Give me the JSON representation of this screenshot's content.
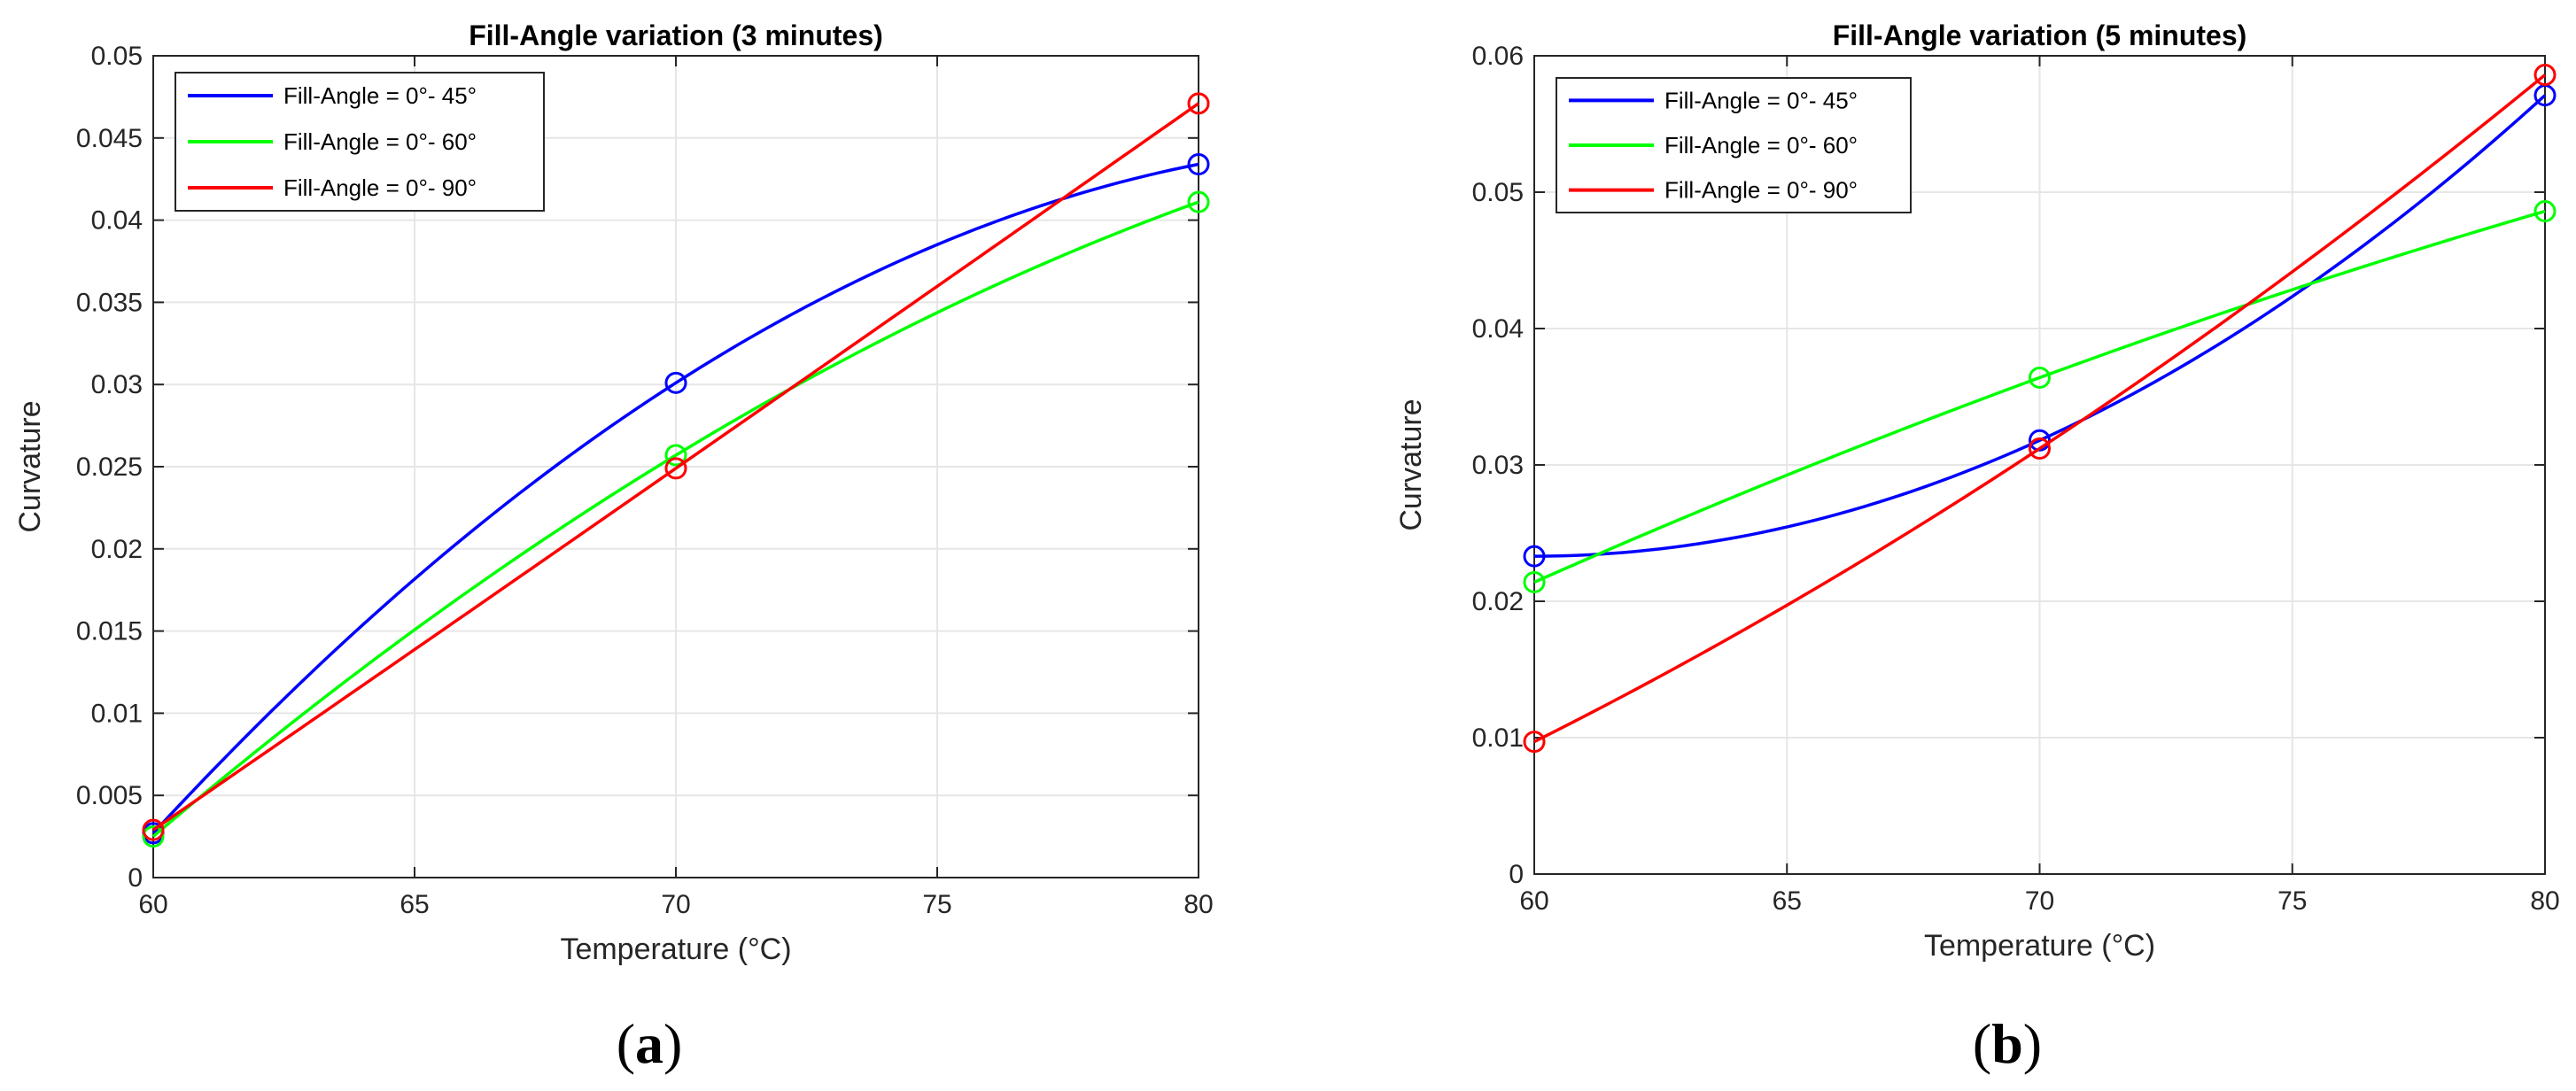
{
  "chart_data": [
    {
      "type": "line",
      "title": "Fill-Angle variation (3 minutes)",
      "xlabel": "Temperature (°C)",
      "ylabel": "Curvature",
      "xlim": [
        60,
        80
      ],
      "ylim": [
        0,
        0.05
      ],
      "x_ticks": [
        60,
        65,
        70,
        75,
        80
      ],
      "y_ticks": [
        0,
        0.005,
        0.01,
        0.015,
        0.02,
        0.025,
        0.03,
        0.035,
        0.04,
        0.045,
        0.05
      ],
      "x_tick_labels": [
        "60",
        "65",
        "70",
        "75",
        "80"
      ],
      "y_tick_labels": [
        "0",
        "0.005",
        "0.01",
        "0.015",
        "0.02",
        "0.025",
        "0.03",
        "0.035",
        "0.04",
        "0.045",
        "0.05"
      ],
      "grid": true,
      "legend_position": "top-left",
      "panel_label": {
        "open": "(",
        "letter": "a",
        "close": ")"
      },
      "series": [
        {
          "name": "Fill-Angle = 0°- 45°",
          "color": "#0000ff",
          "x": [
            60,
            70,
            80
          ],
          "y": [
            0.0027,
            0.0301,
            0.0434
          ]
        },
        {
          "name": "Fill-Angle = 0°- 60°",
          "color": "#00ff00",
          "x": [
            60,
            70,
            80
          ],
          "y": [
            0.0025,
            0.0257,
            0.0411
          ]
        },
        {
          "name": "Fill-Angle = 0°- 90°",
          "color": "#ff0000",
          "x": [
            60,
            70,
            80
          ],
          "y": [
            0.0029,
            0.0249,
            0.0471
          ]
        }
      ]
    },
    {
      "type": "line",
      "title": "Fill-Angle variation (5 minutes)",
      "xlabel": "Temperature (°C)",
      "ylabel": "Curvature",
      "xlim": [
        60,
        80
      ],
      "ylim": [
        0,
        0.06
      ],
      "x_ticks": [
        60,
        65,
        70,
        75,
        80
      ],
      "y_ticks": [
        0,
        0.01,
        0.02,
        0.03,
        0.04,
        0.05,
        0.06
      ],
      "x_tick_labels": [
        "60",
        "65",
        "70",
        "75",
        "80"
      ],
      "y_tick_labels": [
        "0",
        "0.01",
        "0.02",
        "0.03",
        "0.04",
        "0.05",
        "0.06"
      ],
      "grid": true,
      "legend_position": "top-left",
      "panel_label": {
        "open": "(",
        "letter": "b",
        "close": ")"
      },
      "series": [
        {
          "name": "Fill-Angle = 0°- 45°",
          "color": "#0000ff",
          "x": [
            60,
            70,
            80
          ],
          "y": [
            0.0233,
            0.0318,
            0.0571
          ]
        },
        {
          "name": "Fill-Angle = 0°- 60°",
          "color": "#00ff00",
          "x": [
            60,
            70,
            80
          ],
          "y": [
            0.0214,
            0.0364,
            0.0486
          ]
        },
        {
          "name": "Fill-Angle = 0°- 90°",
          "color": "#ff0000",
          "x": [
            60,
            70,
            80
          ],
          "y": [
            0.0097,
            0.0312,
            0.0586
          ]
        }
      ]
    }
  ]
}
